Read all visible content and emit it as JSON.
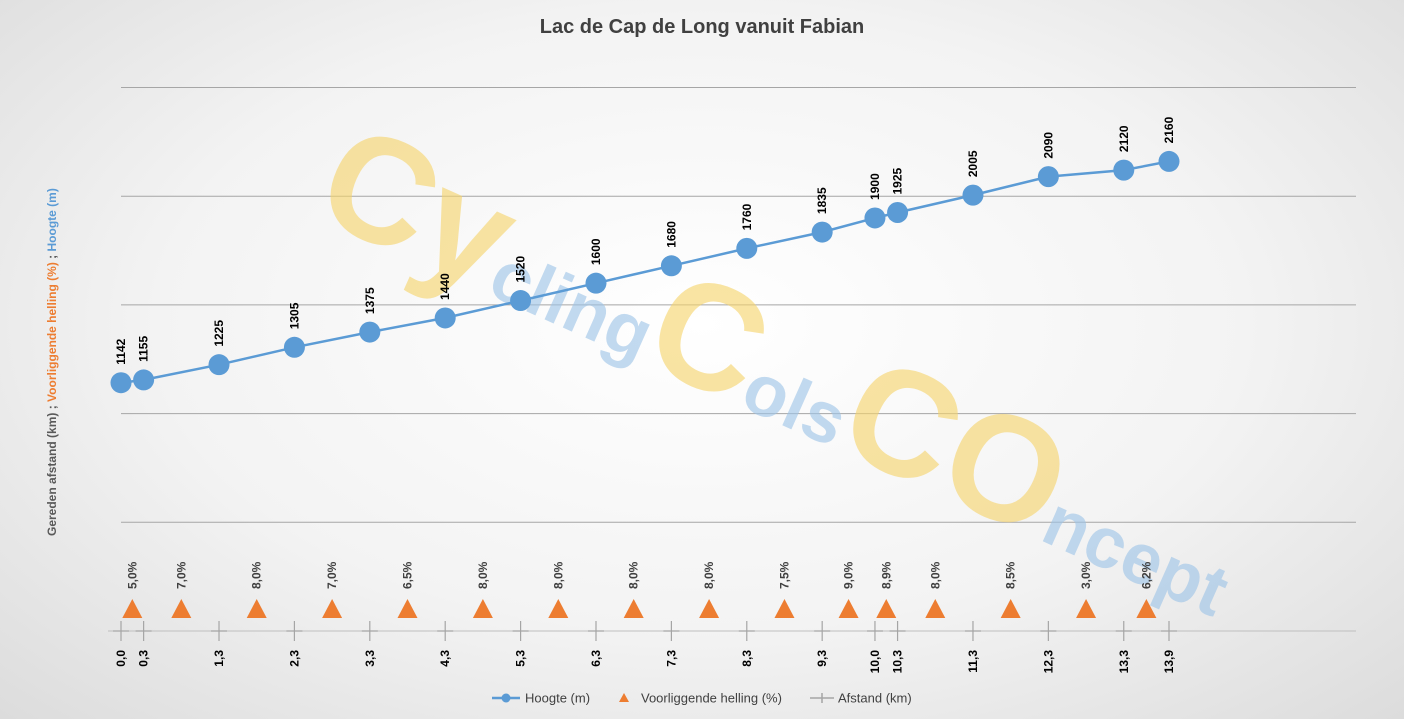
{
  "chart_data": {
    "type": "line",
    "title": "Lac de Cap de Long vanuit Fabian",
    "ylabel_parts": [
      {
        "text": "Gereden afstand (km)",
        "color": "#595959"
      },
      {
        "text": "  ;  ",
        "color": "#595959"
      },
      {
        "text": "Voorliggende helling (%)",
        "color": "#ED7D31"
      },
      {
        "text": "  ;  ",
        "color": "#595959"
      },
      {
        "text": "Hoogte (m)",
        "color": "#5B9BD5"
      }
    ],
    "x": [
      0.0,
      0.3,
      1.3,
      2.3,
      3.3,
      4.3,
      5.3,
      6.3,
      7.3,
      8.3,
      9.3,
      10.0,
      10.3,
      11.3,
      12.3,
      13.3,
      13.9
    ],
    "x_labels": [
      "0,0",
      "0,3",
      "1,3",
      "2,3",
      "3,3",
      "4,3",
      "5,3",
      "6,3",
      "7,3",
      "8,3",
      "9,3",
      "10,0",
      "10,3",
      "11,3",
      "12,3",
      "13,3",
      "13,9"
    ],
    "series": [
      {
        "name": "Hoogte (m)",
        "color": "#5B9BD5",
        "marker": "circle",
        "values": [
          1142,
          1155,
          1225,
          1305,
          1375,
          1440,
          1520,
          1600,
          1680,
          1760,
          1835,
          1900,
          1925,
          2005,
          2090,
          2120,
          2160
        ],
        "labels": [
          "1142",
          "1155",
          "1225",
          "1305",
          "1375",
          "1440",
          "1520",
          "1600",
          "1680",
          "1760",
          "1835",
          "1900",
          "1925",
          "2005",
          "2090",
          "2120",
          "2160"
        ]
      },
      {
        "name": "Voorliggende helling (%)",
        "color": "#ED7D31",
        "marker": "triangle",
        "x": [
          0.15,
          0.8,
          1.8,
          2.8,
          3.8,
          4.8,
          5.8,
          6.8,
          7.8,
          8.8,
          9.65,
          10.15,
          10.8,
          11.8,
          12.8,
          13.6
        ],
        "values": [
          5.0,
          7.0,
          8.0,
          7.0,
          6.5,
          8.0,
          8.0,
          8.0,
          8.0,
          7.5,
          9.0,
          8.9,
          8.0,
          8.5,
          3.0,
          6.2
        ],
        "labels": [
          "5,0%",
          "7,0%",
          "8,0%",
          "7,0%",
          "6,5%",
          "8,0%",
          "8,0%",
          "8,0%",
          "8,0%",
          "7,5%",
          "9,0%",
          "8,9%",
          "8,0%",
          "8,5%",
          "3,0%",
          "6,2%"
        ]
      },
      {
        "name": "Afstand (km)",
        "color": "#A5A5A5",
        "marker": "plus"
      }
    ],
    "xlim": [
      0,
      13.9
    ],
    "ylim": [
      0,
      2500
    ],
    "grid": true,
    "legend": "bottom",
    "watermark": {
      "words": [
        {
          "text": "Cy",
          "color": "#F5D36B",
          "size": 150
        },
        {
          "text": "cling",
          "color": "#9DC3E6",
          "size": 72
        },
        {
          "text": "C",
          "color": "#F5D36B",
          "size": 150
        },
        {
          "text": "ols",
          "color": "#9DC3E6",
          "size": 72
        },
        {
          "text": "CO",
          "color": "#F5D36B",
          "size": 150
        },
        {
          "text": "ncept",
          "color": "#9DC3E6",
          "size": 72
        }
      ]
    }
  }
}
